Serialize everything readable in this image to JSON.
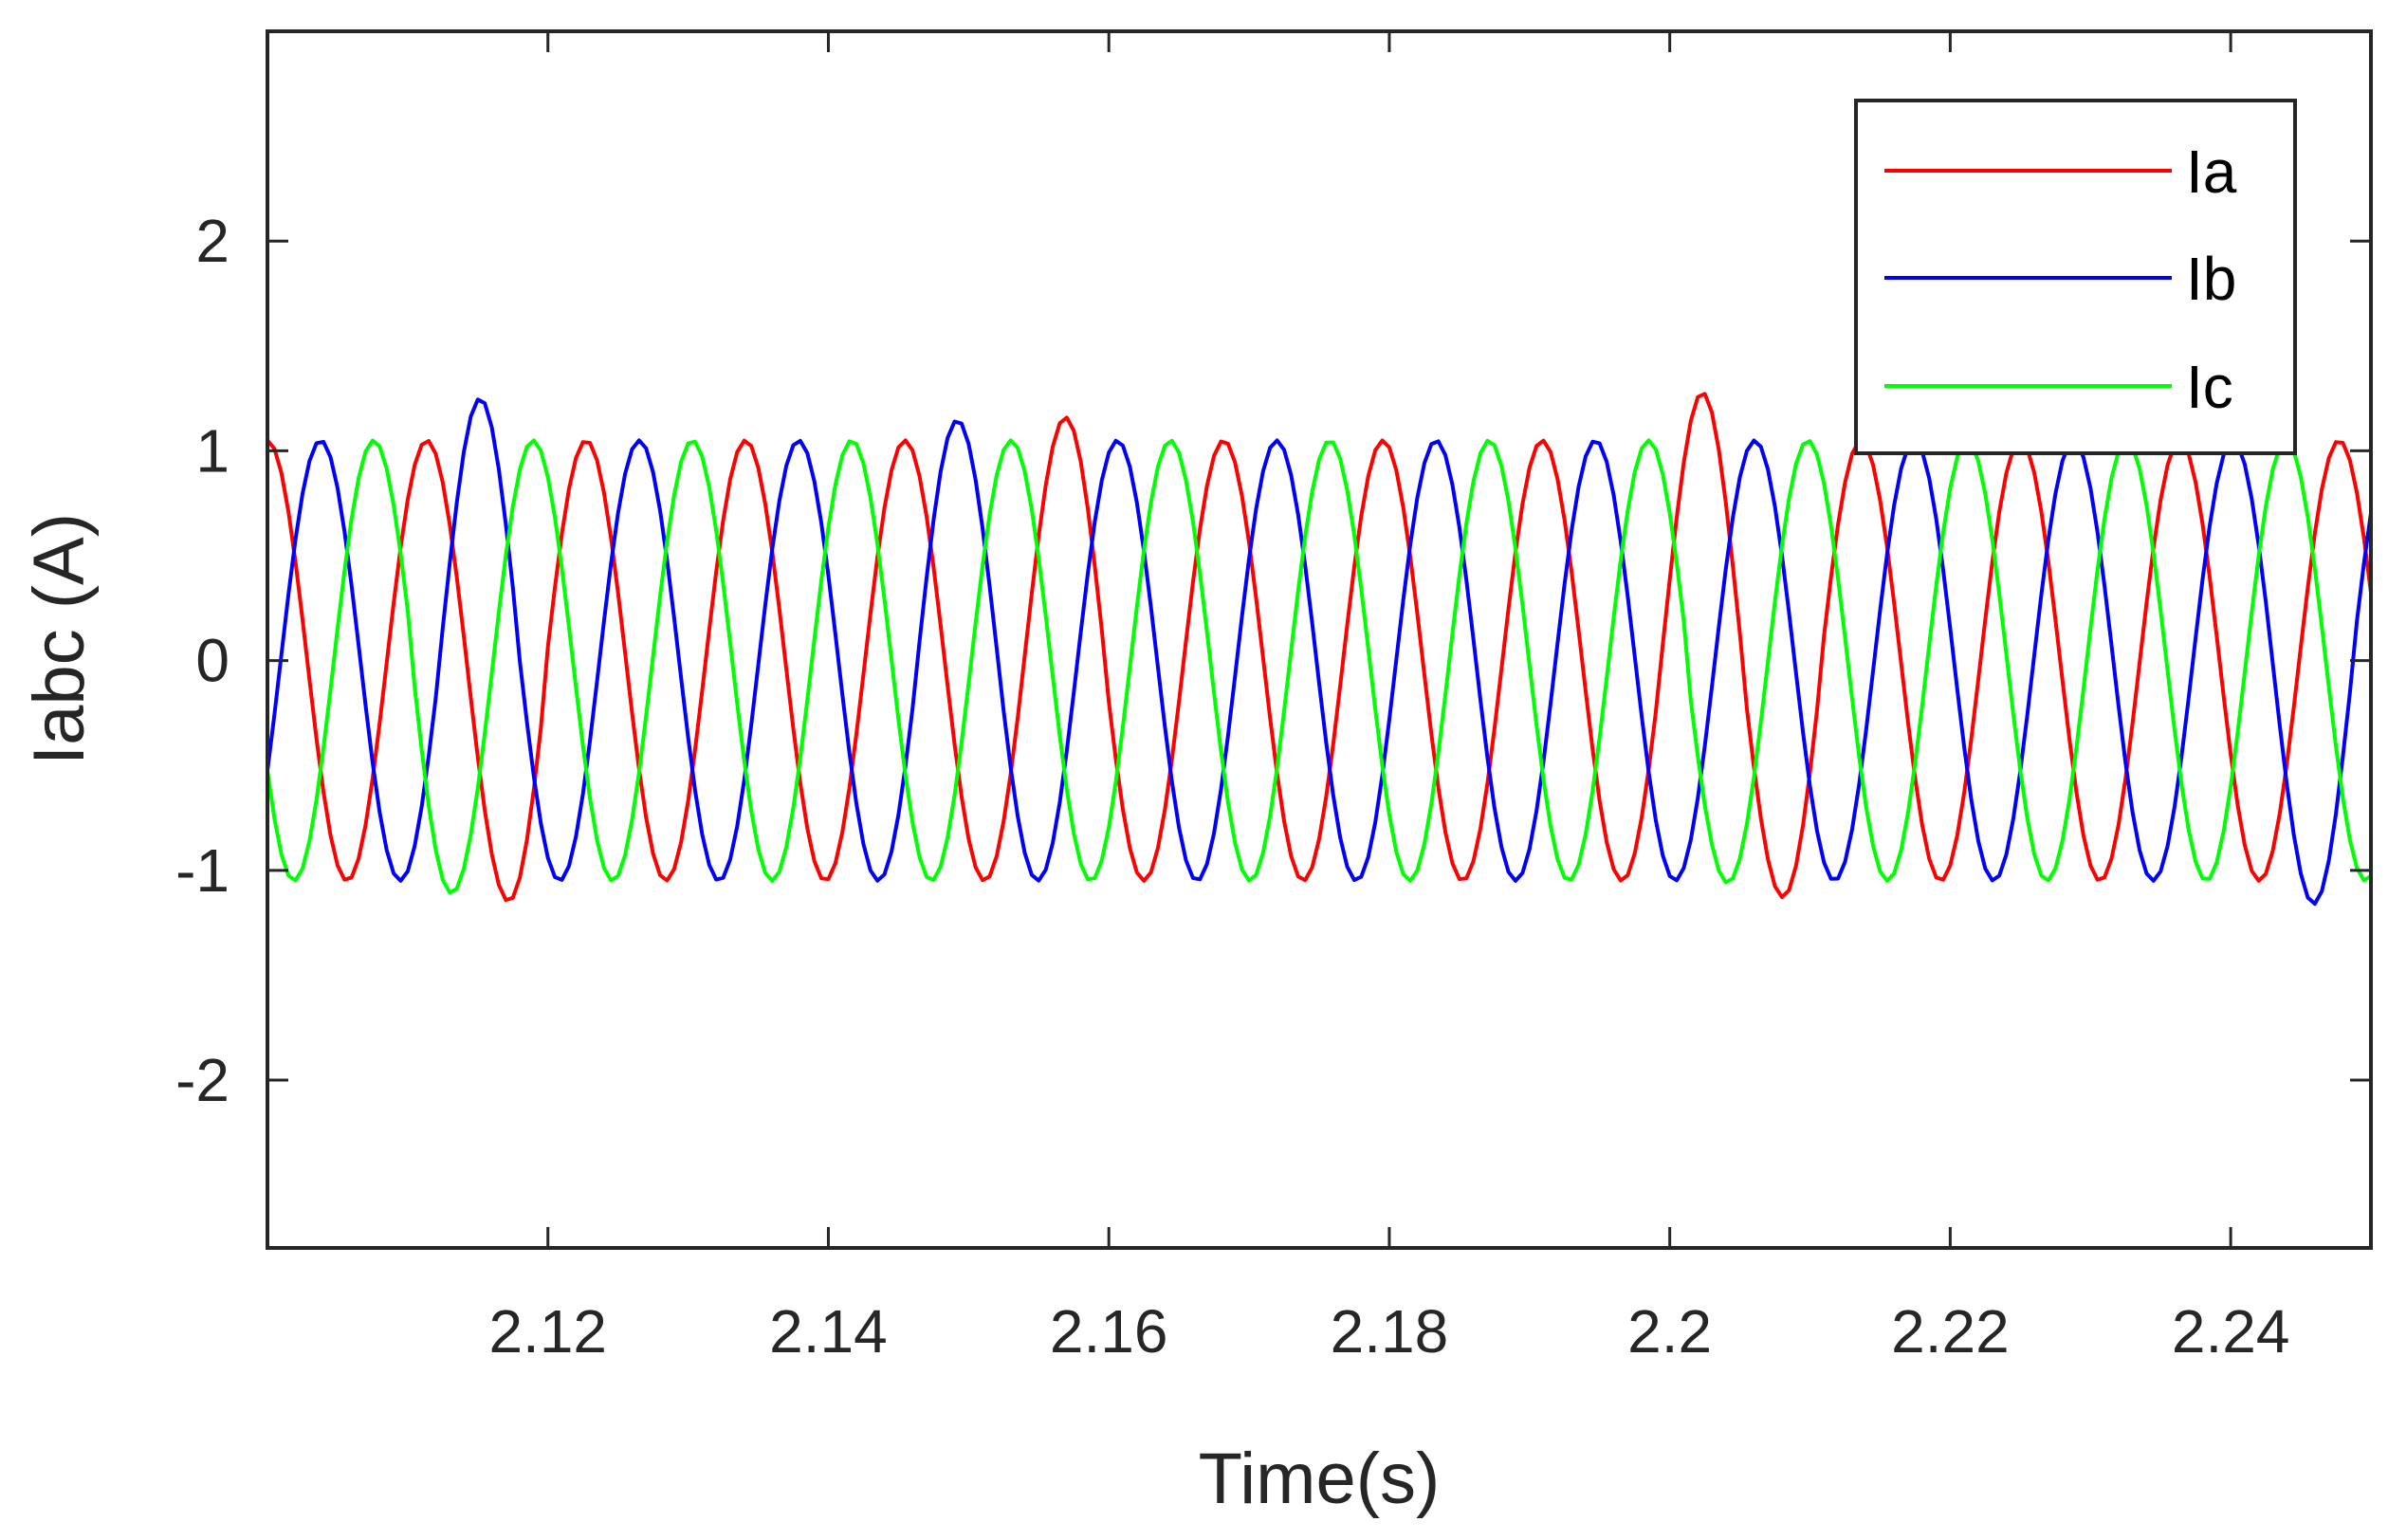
{
  "chart_data": {
    "type": "line",
    "xlabel": "Time(s)",
    "ylabel": "Iabc (A)",
    "xlim": [
      2.1,
      2.25
    ],
    "ylim": [
      -2.8,
      3.0
    ],
    "xticks": [
      2.12,
      2.14,
      2.16,
      2.18,
      2.2,
      2.22,
      2.24
    ],
    "xtick_labels": [
      "2.12",
      "2.14",
      "2.16",
      "2.18",
      "2.2",
      "2.22",
      "2.24"
    ],
    "yticks": [
      2,
      1,
      0,
      -1,
      -2
    ],
    "ytick_labels": [
      "2",
      "1",
      "0",
      "-1",
      "-2"
    ],
    "grid": false,
    "legend_position": "top-right",
    "frequency_hz": 88,
    "sample_step_s": 0.0005,
    "series": [
      {
        "name": "Ia",
        "color": "#ff0000",
        "amplitude": 1.05,
        "phase_deg": 90,
        "peaks": [
          {
            "t": 2.1183,
            "v": -1.18
          },
          {
            "t": 2.1575,
            "v": 1.17
          },
          {
            "t": 2.2025,
            "v": 1.28
          },
          {
            "t": 2.2091,
            "v": -1.15
          }
        ]
      },
      {
        "name": "Ib",
        "color": "#0000ff",
        "amplitude": 1.05,
        "phase_deg": -30,
        "peaks": [
          {
            "t": 2.1152,
            "v": 1.25
          },
          {
            "t": 2.1488,
            "v": 1.15
          },
          {
            "t": 2.2465,
            "v": -1.17
          }
        ]
      },
      {
        "name": "Ic",
        "color": "#00ff00",
        "amplitude": 1.05,
        "phase_deg": 210,
        "peaks": [
          {
            "t": 2.1116,
            "v": -1.15
          },
          {
            "t": 2.2008,
            "v": -1.15
          }
        ]
      }
    ]
  }
}
